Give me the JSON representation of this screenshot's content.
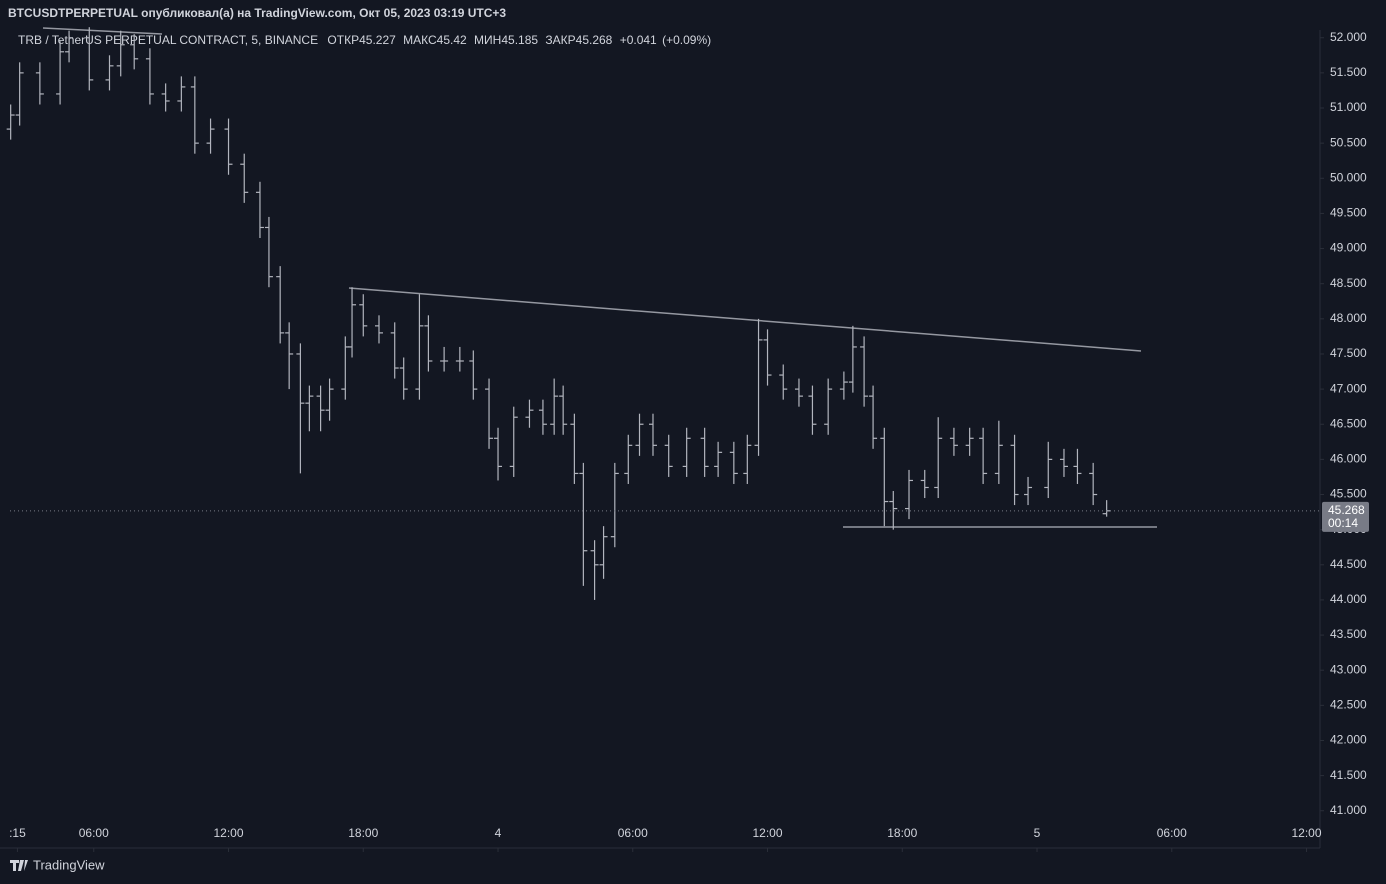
{
  "chart_data": {
    "type": "ohlc",
    "title": "BTCUSDTPERPETUAL опубликовал(а) на TradingView.com, Окт 05, 2023 03:19 UTC+3",
    "symbol": "TRB / TetherUS PERPETUAL CONTRACT, 5, BINANCE",
    "open_label": "ОТКР",
    "high_label": "МАКС",
    "low_label": "МИН",
    "close_label": "ЗАКР",
    "change": {
      "value": 0.041,
      "label": "+0.041"
    },
    "change_pct": {
      "value": 0.09,
      "label": "(+0.09%)"
    },
    "countdown": "00:14",
    "brand": "TradingView",
    "color": "#b2b5be",
    "grid": false,
    "x": [
      2.3,
      2.7,
      3.6,
      4.5,
      4.9,
      5.8,
      6.7,
      7.2,
      7.8,
      8.5,
      9.2,
      9.9,
      10.5,
      11.2,
      12.0,
      12.7,
      13.4,
      13.8,
      14.3,
      14.7,
      15.2,
      15.6,
      16.1,
      16.5,
      17.2,
      17.5,
      18.0,
      18.7,
      19.4,
      19.8,
      20.5,
      20.9,
      21.6,
      22.3,
      22.9,
      23.6,
      24.0,
      24.7,
      25.4,
      26.0,
      26.5,
      26.9,
      27.4,
      27.8,
      28.3,
      28.7,
      29.2,
      29.8,
      30.3,
      30.9,
      31.6,
      32.4,
      33.2,
      33.8,
      34.5,
      35.1,
      35.6,
      36.0,
      36.7,
      37.4,
      38.0,
      38.7,
      39.4,
      39.8,
      40.3,
      40.7,
      41.2,
      41.6,
      42.3,
      43.0,
      43.6,
      44.3,
      45.0,
      45.6,
      46.3,
      47.0,
      47.6,
      48.5,
      49.2,
      49.8,
      50.5,
      51.1
    ],
    "open": [
      50.7,
      50.9,
      51.5,
      51.2,
      51.8,
      52.0,
      51.4,
      51.6,
      51.9,
      51.7,
      51.2,
      51.1,
      51.3,
      50.5,
      50.7,
      50.2,
      49.8,
      49.3,
      48.6,
      47.8,
      47.5,
      46.8,
      46.9,
      46.7,
      47.0,
      47.6,
      48.2,
      47.9,
      47.8,
      47.3,
      47.0,
      47.9,
      47.4,
      47.4,
      47.4,
      47.0,
      46.3,
      45.9,
      46.6,
      46.7,
      46.5,
      46.9,
      46.5,
      45.8,
      44.7,
      44.5,
      44.9,
      45.8,
      46.2,
      46.5,
      46.2,
      45.9,
      46.3,
      45.9,
      46.1,
      45.8,
      46.2,
      47.7,
      47.2,
      47.0,
      46.9,
      46.5,
      47.0,
      47.1,
      47.6,
      46.9,
      46.3,
      45.4,
      45.3,
      45.7,
      45.6,
      46.3,
      46.2,
      46.3,
      45.8,
      46.2,
      45.5,
      45.6,
      46.0,
      45.9,
      45.8,
      45.227
    ],
    "high": [
      51.05,
      51.65,
      51.65,
      51.95,
      52.1,
      52.15,
      51.75,
      52.1,
      52.05,
      51.85,
      51.35,
      51.45,
      51.45,
      50.85,
      50.85,
      50.35,
      49.95,
      49.45,
      48.75,
      47.95,
      47.65,
      47.05,
      47.05,
      47.15,
      47.75,
      48.45,
      48.35,
      48.05,
      47.95,
      47.45,
      48.35,
      48.05,
      47.6,
      47.6,
      47.55,
      47.15,
      46.45,
      46.75,
      46.85,
      46.85,
      47.15,
      47.05,
      46.65,
      45.95,
      44.85,
      45.05,
      45.95,
      46.35,
      46.65,
      46.65,
      46.35,
      46.45,
      46.45,
      46.25,
      46.25,
      46.35,
      48.0,
      47.85,
      47.35,
      47.15,
      47.05,
      47.15,
      47.25,
      47.9,
      47.75,
      47.05,
      46.45,
      45.55,
      45.85,
      45.85,
      46.6,
      46.45,
      46.45,
      46.45,
      46.55,
      46.35,
      45.75,
      46.25,
      46.15,
      46.15,
      45.95,
      45.42
    ],
    "low": [
      50.55,
      50.75,
      51.05,
      51.05,
      51.65,
      51.25,
      51.25,
      51.45,
      51.55,
      51.05,
      50.95,
      50.95,
      50.35,
      50.35,
      50.05,
      49.65,
      49.15,
      48.45,
      47.65,
      47.0,
      45.8,
      46.4,
      46.4,
      46.55,
      46.85,
      47.45,
      47.75,
      47.65,
      47.15,
      46.85,
      46.85,
      47.25,
      47.25,
      47.25,
      46.85,
      46.15,
      45.7,
      45.75,
      46.45,
      46.35,
      46.35,
      46.35,
      45.65,
      44.2,
      44.0,
      44.3,
      44.75,
      45.65,
      46.05,
      46.05,
      45.75,
      45.75,
      45.75,
      45.75,
      45.65,
      45.65,
      46.05,
      47.05,
      46.85,
      46.75,
      46.35,
      46.35,
      46.85,
      46.95,
      46.75,
      46.15,
      45.05,
      45.0,
      45.15,
      45.45,
      45.45,
      46.05,
      46.05,
      45.65,
      45.65,
      45.35,
      45.35,
      45.45,
      45.75,
      45.65,
      45.35,
      45.185
    ],
    "close": [
      50.9,
      51.5,
      51.2,
      51.8,
      52.0,
      51.4,
      51.6,
      51.9,
      51.7,
      51.2,
      51.1,
      51.3,
      50.5,
      50.7,
      50.2,
      49.8,
      49.3,
      48.6,
      47.8,
      47.5,
      46.8,
      46.9,
      46.7,
      47.0,
      47.6,
      48.2,
      47.9,
      47.8,
      47.3,
      47.0,
      47.9,
      47.4,
      47.4,
      47.4,
      47.0,
      46.3,
      45.9,
      46.6,
      46.7,
      46.5,
      46.9,
      46.5,
      45.8,
      44.7,
      44.5,
      44.9,
      45.8,
      46.2,
      46.5,
      46.2,
      45.9,
      46.3,
      45.9,
      46.1,
      45.8,
      46.2,
      47.7,
      47.2,
      47.0,
      46.9,
      46.5,
      47.0,
      47.1,
      47.6,
      46.9,
      46.3,
      45.4,
      45.3,
      45.7,
      45.6,
      46.3,
      46.2,
      46.3,
      45.8,
      46.2,
      45.5,
      45.6,
      46.0,
      45.9,
      45.8,
      45.5,
      45.268
    ],
    "xlim": [
      2.27,
      60.6
    ],
    "ylim": [
      40.47,
      52.11
    ],
    "xticks": [
      {
        "value": 2.6,
        "label": ":15"
      },
      {
        "value": 6,
        "label": "06:00"
      },
      {
        "value": 12,
        "label": "12:00"
      },
      {
        "value": 18,
        "label": "18:00"
      },
      {
        "value": 24,
        "label": "4"
      },
      {
        "value": 30,
        "label": "06:00"
      },
      {
        "value": 36,
        "label": "12:00"
      },
      {
        "value": 42,
        "label": "18:00"
      },
      {
        "value": 48,
        "label": "5"
      },
      {
        "value": 54,
        "label": "06:00"
      },
      {
        "value": 60,
        "label": "12:00"
      }
    ],
    "yticks": [
      {
        "value": 41,
        "label": "41.000"
      },
      {
        "value": 41.5,
        "label": "41.500"
      },
      {
        "value": 42,
        "label": "42.000"
      },
      {
        "value": 42.5,
        "label": "42.500"
      },
      {
        "value": 43,
        "label": "43.000"
      },
      {
        "value": 43.5,
        "label": "43.500"
      },
      {
        "value": 44,
        "label": "44.000"
      },
      {
        "value": 44.5,
        "label": "44.500"
      },
      {
        "value": 45,
        "label": "45.000"
      },
      {
        "value": 45.5,
        "label": "45.500"
      },
      {
        "value": 46,
        "label": "46.000"
      },
      {
        "value": 46.5,
        "label": "46.500"
      },
      {
        "value": 47,
        "label": "47.000"
      },
      {
        "value": 47.5,
        "label": "47.500"
      },
      {
        "value": 48,
        "label": "48.000"
      },
      {
        "value": 48.5,
        "label": "48.500"
      },
      {
        "value": 49,
        "label": "49.000"
      },
      {
        "value": 49.5,
        "label": "49.500"
      },
      {
        "value": 50,
        "label": "50.000"
      },
      {
        "value": 50.5,
        "label": "50.500"
      },
      {
        "value": 51,
        "label": "51.000"
      },
      {
        "value": 51.5,
        "label": "51.500"
      },
      {
        "value": 52,
        "label": "52.000"
      }
    ]
  }
}
